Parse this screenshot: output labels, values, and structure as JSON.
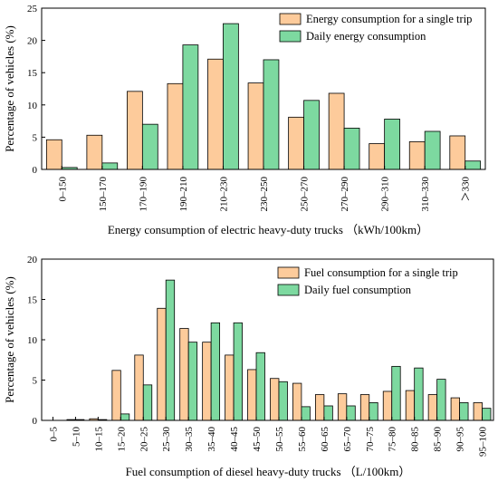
{
  "colors": {
    "series_a": "#FDCB9B",
    "series_b": "#7DD9A0",
    "edge": "#000000"
  },
  "chart_data": [
    {
      "type": "bar",
      "categories": [
        "0–150",
        "150–170",
        "170–190",
        "190–210",
        "210–230",
        "230–250",
        "250–270",
        "270–290",
        "290–310",
        "310–330",
        "＞330"
      ],
      "series": [
        {
          "name": "Energy consumption for a single trip",
          "values": [
            4.6,
            5.3,
            12.1,
            13.3,
            17.1,
            13.4,
            8.1,
            11.8,
            4.0,
            4.3,
            5.2
          ]
        },
        {
          "name": "Daily energy consumption",
          "values": [
            0.3,
            1.0,
            7.0,
            19.3,
            22.6,
            17.0,
            10.7,
            6.4,
            7.8,
            5.9,
            1.3
          ]
        }
      ],
      "xlabel": "Energy consumption of electric heavy-duty trucks （kWh/100km）",
      "ylabel": "Percentage of vehicles (%)",
      "ylim": [
        0,
        25
      ],
      "yticks": [
        0,
        5,
        10,
        15,
        20,
        25
      ],
      "grid": false,
      "legend": "top-right"
    },
    {
      "type": "bar",
      "categories": [
        "0–5",
        "5–10",
        "10–15",
        "15–20",
        "20–25",
        "25–30",
        "30–35",
        "35–40",
        "40–45",
        "45–50",
        "50–55",
        "55–60",
        "60–65",
        "65–70",
        "70–75",
        "75–80",
        "80–85",
        "85–90",
        "90–95",
        "95–100"
      ],
      "series": [
        {
          "name": "Fuel consumption for a single trip",
          "values": [
            0,
            0.1,
            0.2,
            6.2,
            8.1,
            13.9,
            11.4,
            9.7,
            8.1,
            6.3,
            5.2,
            4.6,
            3.2,
            3.3,
            3.2,
            3.6,
            3.7,
            3.2,
            2.8,
            2.2
          ]
        },
        {
          "name": "Daily fuel consumption",
          "values": [
            0,
            0.1,
            0.1,
            0.8,
            4.4,
            17.4,
            9.7,
            12.1,
            12.1,
            8.4,
            4.8,
            1.7,
            1.8,
            1.8,
            2.2,
            6.7,
            6.5,
            5.1,
            2.2,
            1.5
          ]
        }
      ],
      "xlabel": "Fuel consumption of diesel heavy-duty trucks （L/100km）",
      "ylabel": "Percentage of vehicles (%)",
      "ylim": [
        0,
        20
      ],
      "yticks": [
        0,
        5,
        10,
        15,
        20
      ],
      "grid": false,
      "legend": "top-right"
    }
  ]
}
